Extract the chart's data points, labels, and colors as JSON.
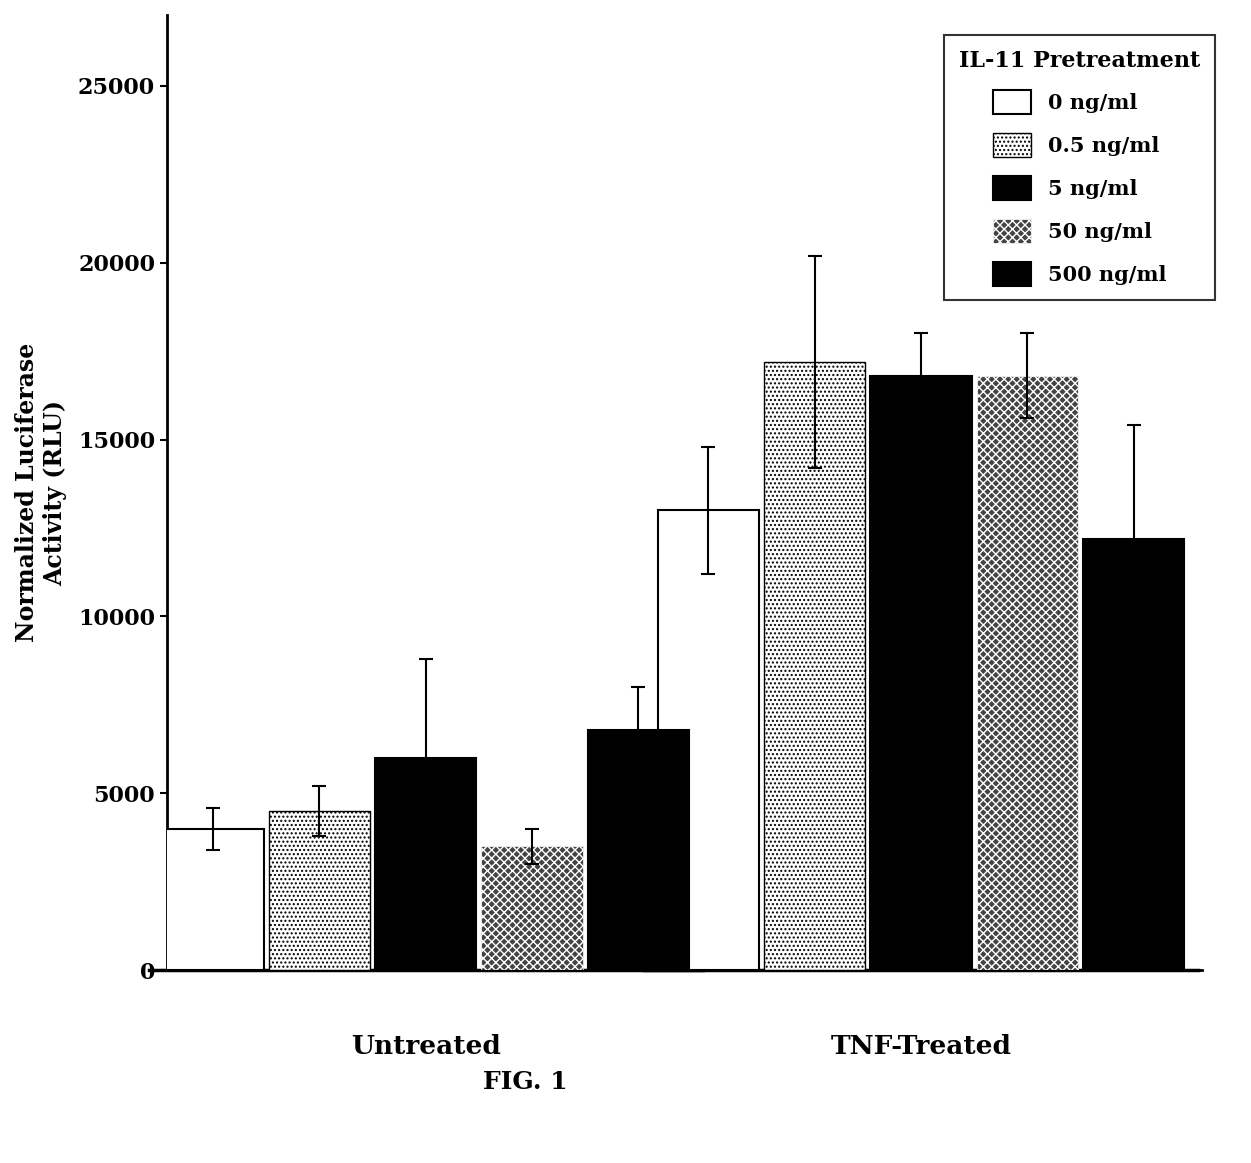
{
  "groups": [
    "Untreated",
    "TNF-Treated"
  ],
  "series_labels": [
    "0 ng/ml",
    "0.5 ng/ml",
    "5 ng/ml",
    "50 ng/ml",
    "500 ng/ml"
  ],
  "values": [
    [
      4000,
      4500,
      6000,
      3500,
      6800
    ],
    [
      13000,
      17200,
      16800,
      16800,
      12200
    ]
  ],
  "errors": [
    [
      600,
      700,
      2800,
      500,
      1200
    ],
    [
      1800,
      3000,
      1200,
      1200,
      3200
    ]
  ],
  "ylabel": "Normalized Luciferase\nActivity (RLU)",
  "legend_title": "IL-11 Pretreatment",
  "figure_label": "FIG. 1",
  "ylim": [
    0,
    27000
  ],
  "yticks": [
    0,
    5000,
    10000,
    15000,
    20000,
    25000
  ],
  "bar_width": 0.09,
  "group_centers": [
    0.28,
    0.72
  ],
  "background_color": "#ffffff",
  "figsize": [
    12.51,
    11.63
  ],
  "dpi": 100
}
